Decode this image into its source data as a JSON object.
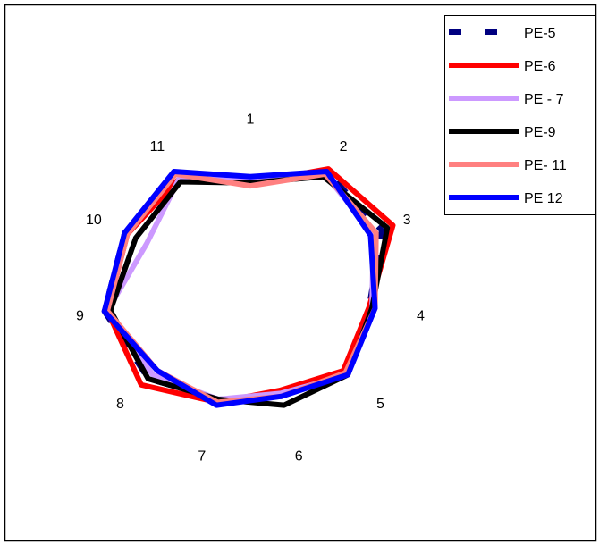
{
  "chart_data": {
    "type": "radar",
    "categories": [
      "1",
      "2",
      "3",
      "4",
      "5",
      "6",
      "7",
      "8",
      "9",
      "10",
      "11"
    ],
    "series": [
      {
        "name": "PE-5",
        "color": "#000080",
        "style": "dashed",
        "values": [
          0.36,
          0.46,
          0.47,
          0.39,
          0.41,
          0.36,
          0.37,
          0.44,
          0.48,
          0.45,
          0.44
        ]
      },
      {
        "name": "PE-6",
        "color": "#ff0000",
        "style": "solid",
        "values": [
          0.35,
          0.47,
          0.51,
          0.39,
          0.4,
          0.34,
          0.38,
          0.47,
          0.47,
          0.44,
          0.43
        ]
      },
      {
        "name": "PE - 7",
        "color": "#cc99ff",
        "style": "solid",
        "values": [
          0.36,
          0.45,
          0.44,
          0.4,
          0.42,
          0.35,
          0.37,
          0.42,
          0.47,
          0.37,
          0.43
        ]
      },
      {
        "name": "PE-9",
        "color": "#000000",
        "style": "solid",
        "values": [
          0.35,
          0.44,
          0.49,
          0.4,
          0.42,
          0.39,
          0.37,
          0.44,
          0.46,
          0.41,
          0.42
        ]
      },
      {
        "name": "PE- 11",
        "color": "#ff8080",
        "style": "solid",
        "values": [
          0.34,
          0.45,
          0.45,
          0.41,
          0.41,
          0.36,
          0.38,
          0.4,
          0.47,
          0.44,
          0.45
        ]
      },
      {
        "name": "PE 12",
        "color": "#0000ff",
        "style": "solid",
        "values": [
          0.37,
          0.46,
          0.43,
          0.41,
          0.42,
          0.36,
          0.39,
          0.4,
          0.48,
          0.45,
          0.46
        ]
      }
    ],
    "rmax": 0.8,
    "grid": false,
    "legend": "top-right"
  }
}
